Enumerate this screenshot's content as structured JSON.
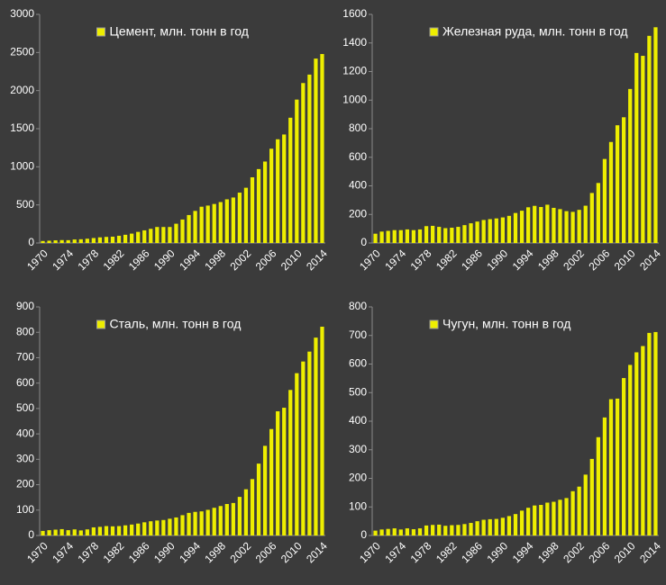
{
  "chart_data": [
    {
      "type": "bar",
      "categories": [
        "1970",
        null,
        null,
        null,
        "1974",
        null,
        null,
        null,
        "1978",
        null,
        null,
        null,
        "1982",
        null,
        null,
        null,
        "1986",
        null,
        null,
        null,
        "1990",
        null,
        null,
        null,
        "1994",
        null,
        null,
        null,
        "1998",
        null,
        null,
        null,
        "2002",
        null,
        null,
        null,
        "2006",
        null,
        null,
        null,
        "2010",
        null,
        null,
        null,
        "2014"
      ],
      "series": [
        {
          "name": "Цемент, млн. тонн в год",
          "color": "#eeee00",
          "values": [
            26,
            30,
            35,
            38,
            37,
            46,
            49,
            56,
            65,
            74,
            80,
            83,
            95,
            108,
            123,
            146,
            166,
            186,
            210,
            210,
            210,
            253,
            308,
            367,
            421,
            476,
            491,
            512,
            537,
            573,
            597,
            661,
            725,
            862,
            970,
            1069,
            1237,
            1361,
            1424,
            1644,
            1882,
            2099,
            2210,
            2420,
            2480
          ]
        }
      ],
      "ylim": [
        0,
        3000
      ],
      "yticks": [
        0,
        500,
        1000,
        1500,
        2000,
        2500,
        3000
      ]
    },
    {
      "type": "bar",
      "categories": [
        "1970",
        null,
        null,
        null,
        "1974",
        null,
        null,
        null,
        "1978",
        null,
        null,
        null,
        "1982",
        null,
        null,
        null,
        "1986",
        null,
        null,
        null,
        "1990",
        null,
        null,
        null,
        "1994",
        null,
        null,
        null,
        "1998",
        null,
        null,
        null,
        "2002",
        null,
        null,
        null,
        "2006",
        null,
        null,
        null,
        "2010",
        null,
        null,
        null,
        "2014"
      ],
      "series": [
        {
          "name": "Железная руда, млн. тонн в год",
          "color": "#eeee00",
          "values": [
            65,
            80,
            85,
            90,
            90,
            95,
            90,
            95,
            118,
            120,
            113,
            104,
            107,
            113,
            125,
            138,
            150,
            161,
            167,
            172,
            179,
            190,
            210,
            226,
            250,
            260,
            252,
            268,
            246,
            237,
            223,
            218,
            232,
            261,
            350,
            420,
            588,
            707,
            824,
            880,
            1078,
            1330,
            1310,
            1450,
            1510
          ]
        }
      ],
      "ylim": [
        0,
        1600
      ],
      "yticks": [
        0,
        200,
        400,
        600,
        800,
        1000,
        1200,
        1400,
        1600
      ]
    },
    {
      "type": "bar",
      "categories": [
        "1970",
        null,
        null,
        null,
        "1974",
        null,
        null,
        null,
        "1978",
        null,
        null,
        null,
        "1982",
        null,
        null,
        null,
        "1986",
        null,
        null,
        null,
        "1990",
        null,
        null,
        null,
        "1994",
        null,
        null,
        null,
        "1998",
        null,
        null,
        null,
        "2002",
        null,
        null,
        null,
        "2006",
        null,
        null,
        null,
        "2010",
        null,
        null,
        null,
        "2014"
      ],
      "series": [
        {
          "name": "Сталь, млн. тонн в год",
          "color": "#eeee00",
          "values": [
            18,
            21,
            23,
            25,
            21,
            24,
            20,
            24,
            32,
            34,
            37,
            36,
            37,
            40,
            43,
            47,
            52,
            56,
            59,
            61,
            66,
            71,
            80,
            89,
            93,
            95,
            101,
            109,
            116,
            124,
            128,
            152,
            182,
            222,
            283,
            353,
            419,
            489,
            503,
            573,
            639,
            685,
            724,
            779,
            822
          ]
        }
      ],
      "ylim": [
        0,
        900
      ],
      "yticks": [
        0,
        100,
        200,
        300,
        400,
        500,
        600,
        700,
        800,
        900
      ]
    },
    {
      "type": "bar",
      "categories": [
        "1970",
        null,
        null,
        null,
        "1974",
        null,
        null,
        null,
        "1978",
        null,
        null,
        null,
        "1982",
        null,
        null,
        null,
        "1986",
        null,
        null,
        null,
        "1990",
        null,
        null,
        null,
        "1994",
        null,
        null,
        null,
        "1998",
        null,
        null,
        null,
        "2002",
        null,
        null,
        null,
        "2006",
        null,
        null,
        null,
        "2010",
        null,
        null,
        null,
        "2014"
      ],
      "series": [
        {
          "name": "Чугун, млн. тонн в год",
          "color": "#eeee00",
          "values": [
            17,
            21,
            23,
            25,
            21,
            25,
            22,
            25,
            35,
            37,
            38,
            34,
            36,
            37,
            40,
            44,
            50,
            55,
            57,
            58,
            62,
            68,
            75,
            87,
            97,
            105,
            107,
            115,
            118,
            125,
            131,
            155,
            171,
            213,
            268,
            344,
            413,
            477,
            479,
            551,
            597,
            641,
            663,
            709,
            712
          ]
        }
      ],
      "ylim": [
        0,
        800
      ],
      "yticks": [
        0,
        100,
        200,
        300,
        400,
        500,
        600,
        700,
        800
      ]
    }
  ]
}
